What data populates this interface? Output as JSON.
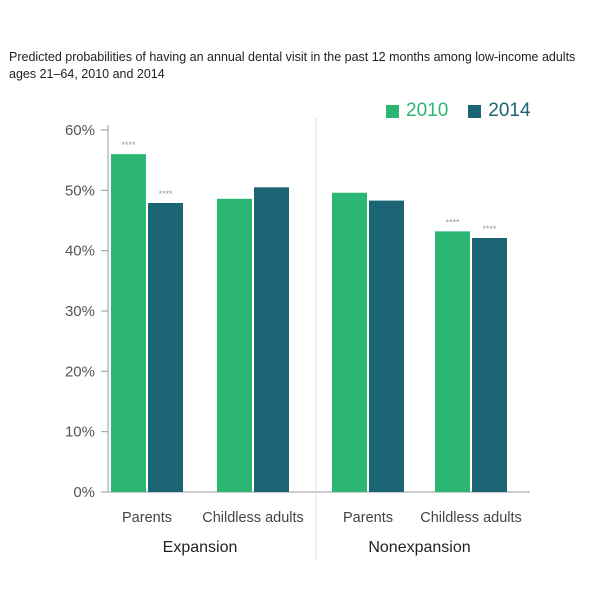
{
  "chart_data": {
    "type": "bar",
    "title": "Predicted probabilities of having an annual dental visit in the past 12 months among low-income adults ages 21–64, 2010 and 2014",
    "groups": [
      {
        "label": "Expansion",
        "categories": [
          "Parents",
          "Childless adults"
        ]
      },
      {
        "label": "Nonexpansion",
        "categories": [
          "Parents",
          "Childless adults"
        ]
      }
    ],
    "series": [
      {
        "name": "2010",
        "color": "#2cb673",
        "values": [
          56,
          48.6,
          49.6,
          43.2
        ],
        "annotations": [
          "****",
          "",
          "",
          "****"
        ]
      },
      {
        "name": "2014",
        "color": "#1a6474",
        "values": [
          47.9,
          50.5,
          48.3,
          42.1
        ],
        "annotations": [
          "****",
          "",
          "",
          "****"
        ]
      }
    ],
    "ylim": [
      0,
      60
    ],
    "yticks": [
      "0%",
      "10%",
      "20%",
      "30%",
      "40%",
      "50%",
      "60%"
    ],
    "grid": false,
    "legend_position": "top-right"
  }
}
